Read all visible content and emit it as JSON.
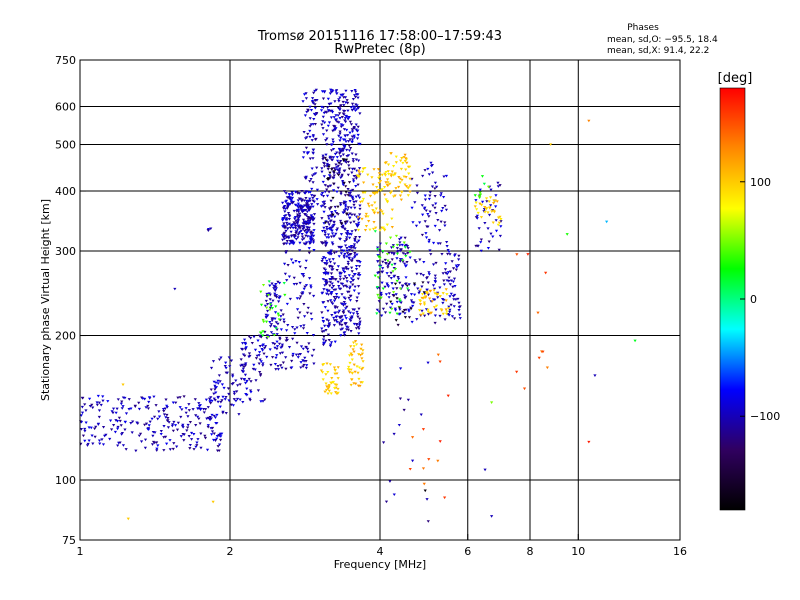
{
  "chart_data": {
    "type": "scatter",
    "title": "Tromsø 20151116 17:58:00–17:59:43",
    "subtitle": "RwPretec (8p)",
    "xlabel": "Frequency [MHz]",
    "ylabel": "Stationary phase Virtual Height [km]",
    "x_scale": "log",
    "y_scale": "log",
    "xlim": [
      1,
      16
    ],
    "ylim": [
      75,
      750
    ],
    "x_ticks": [
      1,
      2,
      4,
      6,
      8,
      10,
      16
    ],
    "x_tick_labels": [
      "1",
      "2",
      "4",
      "6",
      "8",
      "10",
      "16"
    ],
    "y_ticks": [
      75,
      100,
      200,
      300,
      400,
      500,
      600,
      750
    ],
    "y_tick_labels": [
      "75",
      "100",
      "200",
      "300",
      "400",
      "500",
      "600",
      "750"
    ],
    "grid": true,
    "phases_block": {
      "title": "Phases",
      "line1": "mean, sd,O: −95.5, 18.4",
      "line2": "mean, sd,X:  91.4, 22.2"
    },
    "colorbar": {
      "label": "[deg]",
      "range": [
        -180,
        180
      ],
      "ticks": [
        100,
        0,
        -100
      ],
      "tick_labels": [
        "100",
        "0",
        "−100"
      ],
      "colors": [
        "#ff0000",
        "#ff8800",
        "#ffff00",
        "#00ff00",
        "#00ffff",
        "#0000ff",
        "#300060",
        "#000000"
      ]
    },
    "series": [
      {
        "phase": -100,
        "clusters": [
          {
            "f": [
              1.0,
              1.95
            ],
            "h": [
              115,
              150
            ],
            "n": 260
          },
          {
            "f": [
              1.8,
              2.1
            ],
            "h": [
              135,
              180
            ],
            "n": 60
          },
          {
            "f": [
              2.1,
              2.35
            ],
            "h": [
              145,
              200
            ],
            "n": 80
          },
          {
            "f": [
              2.35,
              2.55
            ],
            "h": [
              170,
              260
            ],
            "n": 90
          },
          {
            "f": [
              2.55,
              2.95
            ],
            "h": [
              170,
              330
            ],
            "n": 120
          },
          {
            "f": [
              2.55,
              2.95
            ],
            "h": [
              310,
              400
            ],
            "n": 260
          },
          {
            "f": [
              2.8,
              3.0
            ],
            "h": [
              350,
              650
            ],
            "n": 90
          },
          {
            "f": [
              3.05,
              3.3
            ],
            "h": [
              190,
              650
            ],
            "n": 320
          },
          {
            "f": [
              3.3,
              3.65
            ],
            "h": [
              200,
              650
            ],
            "n": 420
          },
          {
            "f": [
              3.95,
              4.6
            ],
            "h": [
              220,
              320
            ],
            "n": 120
          },
          {
            "f": [
              4.6,
              5.5
            ],
            "h": [
              210,
              460
            ],
            "n": 140
          },
          {
            "f": [
              5.5,
              5.8
            ],
            "h": [
              215,
              300
            ],
            "n": 40
          },
          {
            "f": [
              6.2,
              7.0
            ],
            "h": [
              300,
              420
            ],
            "n": 40
          },
          {
            "f": [
              4.0,
              5.0
            ],
            "h": [
              90,
              180
            ],
            "n": 14
          },
          {
            "f": [
              1.85,
              1.92
            ],
            "h": [
              120,
              125
            ],
            "n": 10
          },
          {
            "f": [
              1.78,
              1.83
            ],
            "h": [
              330,
              335
            ],
            "n": 4
          }
        ]
      },
      {
        "phase": 100,
        "clusters": [
          {
            "f": [
              3.05,
              3.3
            ],
            "h": [
              150,
              175
            ],
            "n": 40
          },
          {
            "f": [
              3.45,
              3.7
            ],
            "h": [
              155,
              195
            ],
            "n": 45
          },
          {
            "f": [
              3.6,
              4.3
            ],
            "h": [
              330,
              450
            ],
            "n": 90
          },
          {
            "f": [
              4.1,
              4.6
            ],
            "h": [
              380,
              480
            ],
            "n": 50
          },
          {
            "f": [
              4.8,
              5.5
            ],
            "h": [
              220,
              250
            ],
            "n": 45
          },
          {
            "f": [
              6.2,
              7.0
            ],
            "h": [
              340,
              390
            ],
            "n": 30
          }
        ]
      },
      {
        "phase": 30,
        "clusters": [
          {
            "f": [
              2.3,
              2.6
            ],
            "h": [
              190,
              260
            ],
            "n": 25
          },
          {
            "f": [
              3.9,
              4.6
            ],
            "h": [
              220,
              330
            ],
            "n": 40
          },
          {
            "f": [
              6.2,
              6.7
            ],
            "h": [
              380,
              430
            ],
            "n": 8
          }
        ]
      },
      {
        "phase": -160,
        "clusters": [
          {
            "f": [
              3.1,
              3.5
            ],
            "h": [
              340,
              480
            ],
            "n": 30
          },
          {
            "f": [
              4.2,
              5.0
            ],
            "h": [
              200,
              260
            ],
            "n": 16
          }
        ]
      },
      {
        "phase": 150,
        "clusters": [
          {
            "f": [
              4.5,
              5.5
            ],
            "h": [
              90,
              200
            ],
            "n": 12
          },
          {
            "f": [
              7.5,
              9.0
            ],
            "h": [
              160,
              300
            ],
            "n": 8
          }
        ]
      }
    ],
    "outliers": [
      {
        "x": 1.22,
        "y": 158,
        "phase": 100
      },
      {
        "x": 1.25,
        "y": 83,
        "phase": 100
      },
      {
        "x": 1.55,
        "y": 250,
        "phase": -100
      },
      {
        "x": 1.85,
        "y": 90,
        "phase": 100
      },
      {
        "x": 6.5,
        "y": 105,
        "phase": -100
      },
      {
        "x": 6.7,
        "y": 84,
        "phase": -100
      },
      {
        "x": 6.7,
        "y": 145,
        "phase": 50
      },
      {
        "x": 7.8,
        "y": 155,
        "phase": 150
      },
      {
        "x": 8.6,
        "y": 270,
        "phase": 160
      },
      {
        "x": 8.8,
        "y": 500,
        "phase": 100
      },
      {
        "x": 9.5,
        "y": 325,
        "phase": 30
      },
      {
        "x": 10.8,
        "y": 165,
        "phase": -100
      },
      {
        "x": 10.5,
        "y": 560,
        "phase": 130
      },
      {
        "x": 10.5,
        "y": 120,
        "phase": 170
      },
      {
        "x": 11.4,
        "y": 345,
        "phase": -40
      },
      {
        "x": 13.0,
        "y": 195,
        "phase": 20
      },
      {
        "x": 4.93,
        "y": 95,
        "phase": -175
      },
      {
        "x": 5.0,
        "y": 82,
        "phase": -120
      }
    ]
  }
}
